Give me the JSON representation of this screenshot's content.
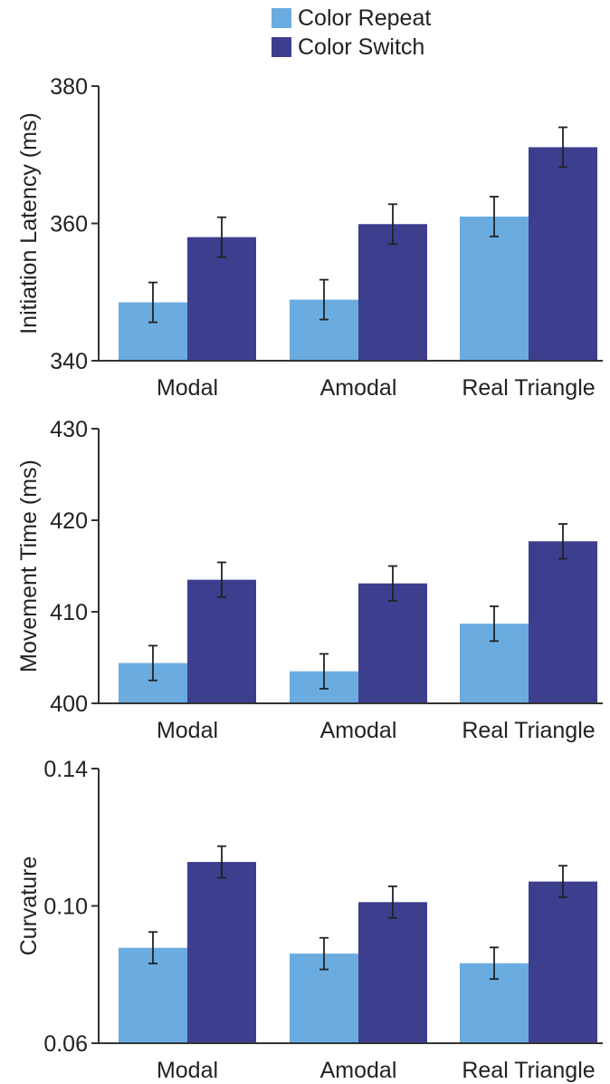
{
  "colors": {
    "repeat": "#6aace0",
    "switch": "#3d3e8e",
    "axis": "#333333",
    "error_bar": "#222222"
  },
  "legend": [
    {
      "name": "Color Repeat",
      "color": "#6aace0"
    },
    {
      "name": "Color Switch",
      "color": "#3d3e8e"
    }
  ],
  "chart_data": [
    {
      "type": "bar",
      "ylabel": "Initiation Latency (ms)",
      "ylim": [
        340,
        380
      ],
      "yticks": [
        "340",
        "360",
        "380"
      ],
      "categories": [
        "Modal",
        "Amodal",
        "Real Triangle"
      ],
      "series": [
        {
          "name": "Color Repeat",
          "values": [
            348.5,
            348.9,
            361.0
          ],
          "errors": [
            2.9,
            2.9,
            2.9
          ]
        },
        {
          "name": "Color Switch",
          "values": [
            358.0,
            359.9,
            371.1
          ],
          "errors": [
            2.9,
            2.9,
            2.9
          ]
        }
      ]
    },
    {
      "type": "bar",
      "ylabel": "Movement Time (ms)",
      "ylim": [
        400,
        430
      ],
      "yticks": [
        "400",
        "410",
        "420",
        "430"
      ],
      "categories": [
        "Modal",
        "Amodal",
        "Real Triangle"
      ],
      "series": [
        {
          "name": "Color Repeat",
          "values": [
            404.4,
            403.5,
            408.7
          ],
          "errors": [
            1.9,
            1.9,
            1.9
          ]
        },
        {
          "name": "Color Switch",
          "values": [
            413.5,
            413.1,
            417.7
          ],
          "errors": [
            1.9,
            1.9,
            1.9
          ]
        }
      ]
    },
    {
      "type": "bar",
      "ylabel": "Curvature",
      "ylim": [
        0.06,
        0.14
      ],
      "yticks": [
        "0.06",
        "0.10",
        "0.14"
      ],
      "categories": [
        "Modal",
        "Amodal",
        "Real Triangle"
      ],
      "series": [
        {
          "name": "Color Repeat",
          "values": [
            0.0878,
            0.0861,
            0.0833
          ],
          "errors": [
            0.0046,
            0.0046,
            0.0046
          ]
        },
        {
          "name": "Color Switch",
          "values": [
            0.1128,
            0.1011,
            0.1071
          ],
          "errors": [
            0.0046,
            0.0046,
            0.0046
          ]
        }
      ]
    }
  ]
}
